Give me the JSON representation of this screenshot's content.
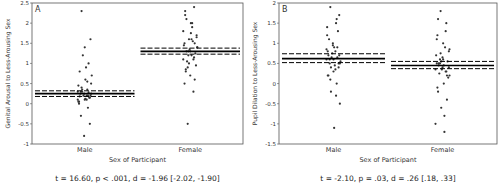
{
  "chart_data": [
    {
      "type": "scatter",
      "title": "A",
      "x_label": "Sex of Participant",
      "y_label": "Genital Arousal to Less-Arousing Sex",
      "caption": "t = 16.60, p < .001, d = -1.96 [-2.02, -1.90]",
      "categories": [
        "Male",
        "Female"
      ],
      "values": [
        [
          0.1,
          0.2,
          0.3,
          0.15,
          0.25,
          0.05,
          0.35,
          0.4,
          0.2,
          0.1,
          0.0,
          -0.1,
          0.3,
          0.5,
          0.6,
          0.8,
          1.0,
          1.2,
          0.7,
          0.9,
          0.25,
          0.15,
          0.2,
          0.3,
          0.1,
          -0.3,
          -0.5,
          -0.8,
          0.45,
          0.55,
          2.3,
          1.6,
          1.4,
          0.05,
          0.2,
          0.35,
          0.25,
          0.12,
          0.18,
          0.28
        ],
        [
          1.3,
          1.5,
          1.1,
          0.9,
          1.7,
          2.0,
          2.2,
          2.4,
          1.2,
          1.4,
          1.6,
          0.8,
          0.6,
          1.0,
          1.8,
          1.9,
          2.1,
          1.25,
          1.35,
          1.45,
          1.55,
          1.05,
          0.95,
          0.7,
          0.5,
          0.3,
          -0.5,
          1.65,
          1.75,
          2.3,
          1.15,
          1.3,
          1.4,
          1.2,
          0.85,
          1.5,
          1.6,
          1.1,
          2.0,
          1.3
        ]
      ],
      "means": [
        0.25,
        1.3
      ],
      "ci_lower": [
        0.18,
        1.23
      ],
      "ci_upper": [
        0.32,
        1.38
      ],
      "color": "#333333",
      "ylim": [
        -1,
        2.5
      ],
      "yticks": [
        -1,
        -0.5,
        0,
        0.5,
        1,
        1.5,
        2,
        2.5
      ],
      "grid": false
    },
    {
      "type": "scatter",
      "title": "B",
      "x_label": "Sex of Participant",
      "y_label": "Pupil Dilation to Less-Arousing Sex",
      "caption": "t = -2.10, p = .03, d = .26 [.18, .33]",
      "categories": [
        "Male",
        "Female"
      ],
      "values": [
        [
          0.6,
          0.8,
          0.5,
          0.4,
          1.0,
          1.2,
          1.5,
          1.9,
          1.7,
          0.3,
          0.2,
          0.0,
          -0.2,
          -0.5,
          -1.1,
          0.7,
          0.9,
          0.65,
          0.55,
          0.45,
          1.1,
          1.3,
          0.75,
          0.85,
          0.35,
          0.6,
          0.5,
          0.95,
          1.4,
          -0.3,
          0.1,
          0.7,
          0.6,
          0.8,
          1.6,
          0.4,
          0.5,
          0.9,
          0.2,
          0.65
        ],
        [
          0.4,
          0.5,
          0.3,
          0.6,
          0.8,
          1.0,
          1.2,
          1.5,
          1.8,
          0.2,
          0.0,
          -0.2,
          -0.4,
          -0.6,
          -1.0,
          -1.2,
          0.45,
          0.55,
          0.35,
          0.7,
          0.9,
          0.25,
          0.15,
          0.65,
          1.1,
          1.3,
          0.5,
          0.4,
          0.6,
          -0.1,
          0.3,
          0.75,
          0.85,
          0.45,
          1.6,
          0.2,
          0.55,
          0.35,
          -0.8,
          0.5
        ]
      ],
      "means": [
        0.62,
        0.45
      ],
      "ci_lower": [
        0.52,
        0.37
      ],
      "ci_upper": [
        0.74,
        0.55
      ],
      "color": "#333333",
      "ylim": [
        -1.5,
        2
      ],
      "yticks": [
        -1.5,
        -1,
        -0.5,
        0,
        0.5,
        1,
        1.5,
        2
      ],
      "grid": false
    }
  ]
}
